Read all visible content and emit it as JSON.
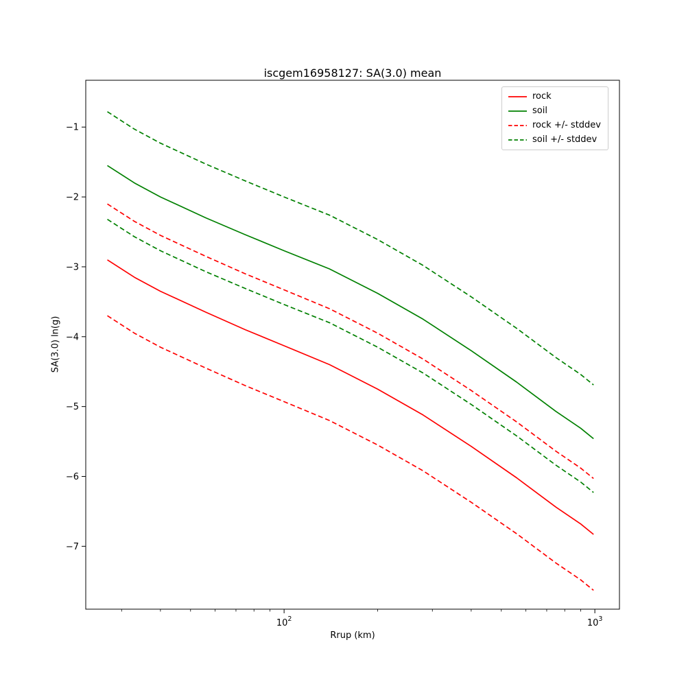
{
  "chart_data": {
    "type": "line",
    "title": "iscgem16958127: SA(3.0) mean",
    "xlabel": "Rrup (km)",
    "ylabel": "SA(3.0) ln(g)",
    "x_scale": "log",
    "y_scale": "linear",
    "xlim": [
      23,
      1200
    ],
    "ylim": [
      -7.9,
      -0.33
    ],
    "grid": false,
    "legend_position": "upper right",
    "x_ticks": [
      {
        "value": 100,
        "label_base": "10",
        "label_exp": "2"
      },
      {
        "value": 1000,
        "label_base": "10",
        "label_exp": "3"
      }
    ],
    "y_ticks": [
      {
        "value": -1,
        "label": "−1"
      },
      {
        "value": -2,
        "label": "−2"
      },
      {
        "value": -3,
        "label": "−3"
      },
      {
        "value": -4,
        "label": "−4"
      },
      {
        "value": -5,
        "label": "−5"
      },
      {
        "value": -6,
        "label": "−6"
      },
      {
        "value": -7,
        "label": "−7"
      }
    ],
    "x": [
      27,
      33,
      40,
      56,
      75,
      100,
      140,
      200,
      280,
      400,
      560,
      750,
      900,
      990
    ],
    "series": [
      {
        "name": "rock",
        "color": "#ff0000",
        "style": "solid",
        "values": [
          -2.9,
          -3.15,
          -3.35,
          -3.65,
          -3.9,
          -4.13,
          -4.4,
          -4.75,
          -5.12,
          -5.57,
          -6.02,
          -6.44,
          -6.68,
          -6.83
        ]
      },
      {
        "name": "soil",
        "color": "#008000",
        "style": "solid",
        "values": [
          -1.55,
          -1.8,
          -2.0,
          -2.3,
          -2.54,
          -2.77,
          -3.03,
          -3.38,
          -3.75,
          -4.2,
          -4.65,
          -5.07,
          -5.31,
          -5.46
        ]
      },
      {
        "name": "rock +/- stddev",
        "color": "#ff0000",
        "style": "dashed",
        "values_upper": [
          -2.1,
          -2.35,
          -2.55,
          -2.85,
          -3.1,
          -3.33,
          -3.6,
          -3.95,
          -4.32,
          -4.77,
          -5.22,
          -5.64,
          -5.88,
          -6.03
        ],
        "values_lower": [
          -3.7,
          -3.95,
          -4.15,
          -4.45,
          -4.7,
          -4.93,
          -5.2,
          -5.55,
          -5.92,
          -6.37,
          -6.82,
          -7.24,
          -7.48,
          -7.63
        ]
      },
      {
        "name": "soil +/- stddev",
        "color": "#008000",
        "style": "dashed",
        "values_upper": [
          -0.78,
          -1.03,
          -1.23,
          -1.53,
          -1.77,
          -2.0,
          -2.26,
          -2.61,
          -2.98,
          -3.43,
          -3.88,
          -4.3,
          -4.54,
          -4.69
        ],
        "values_lower": [
          -2.32,
          -2.57,
          -2.77,
          -3.07,
          -3.31,
          -3.54,
          -3.8,
          -4.15,
          -4.52,
          -4.97,
          -5.42,
          -5.84,
          -6.08,
          -6.23
        ]
      }
    ]
  }
}
